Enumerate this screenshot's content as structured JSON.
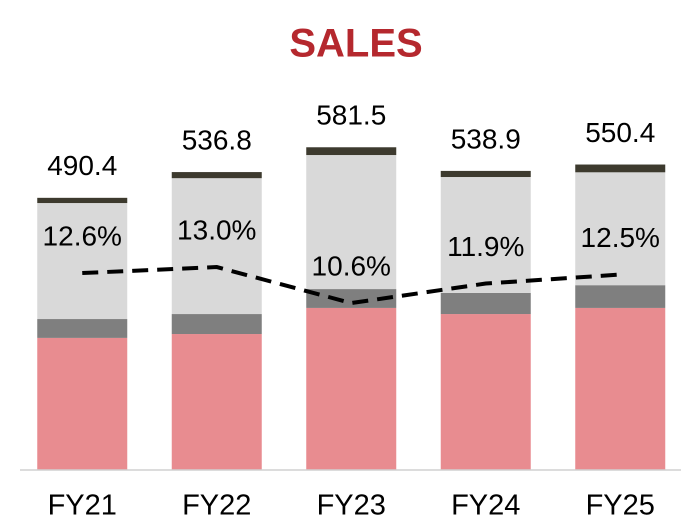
{
  "chart_data": {
    "type": "bar",
    "stacked": true,
    "title": "SALES",
    "categories": [
      "FY21",
      "FY22",
      "FY23",
      "FY24",
      "FY25"
    ],
    "series": [
      {
        "color": "#e88c90",
        "values": [
          238,
          245,
          292,
          281,
          292
        ]
      },
      {
        "color": "#7f7f7f",
        "values": [
          34,
          36,
          34,
          38,
          41
        ]
      },
      {
        "color": "#d9d9d9",
        "values": [
          209,
          244.8,
          241.5,
          208.9,
          203.4
        ]
      },
      {
        "color": "#3d3a2e",
        "values": [
          9.4,
          11,
          14,
          11,
          14
        ]
      },
      {
        "type": "line",
        "axis": "y2",
        "color": "#000000",
        "dashed": true,
        "values": [
          12.6,
          13.0,
          10.6,
          11.9,
          12.5
        ],
        "value_labels": [
          "12.6%",
          "13.0%",
          "10.6%",
          "11.9%",
          "12.5%"
        ]
      }
    ],
    "totals": [
      490.4,
      536.8,
      581.5,
      538.9,
      550.4
    ],
    "ylim": [
      0,
      600
    ],
    "y2lim": [
      -0.53,
      21.67
    ]
  }
}
